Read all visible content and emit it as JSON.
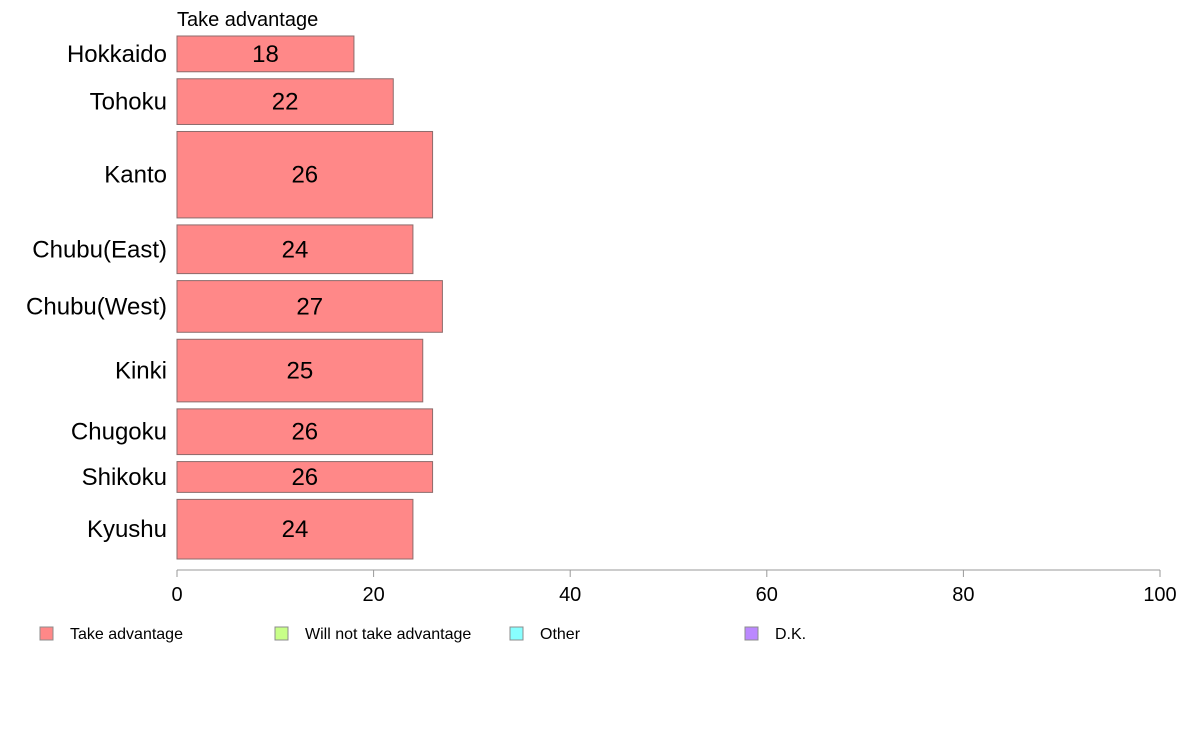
{
  "chart_data": {
    "type": "bar",
    "orientation": "horizontal",
    "stacked": true,
    "series_title": "Take advantage",
    "categories": [
      "Hokkaido",
      "Tohoku",
      "Kanto",
      "Chubu(East)",
      "Chubu(West)",
      "Kinki",
      "Chugoku",
      "Shikoku",
      "Kyushu"
    ],
    "series": [
      {
        "name": "Take advantage",
        "values": [
          18,
          22,
          26,
          24,
          27,
          25,
          26,
          26,
          24
        ],
        "labels": [
          "18",
          "22",
          "26",
          "24",
          "27",
          "25",
          "26",
          "26",
          "24"
        ],
        "color": "#ff8888"
      }
    ],
    "category_weights": [
      0.72,
      0.92,
      1.74,
      0.98,
      1.04,
      1.26,
      0.92,
      0.62,
      1.2
    ],
    "xlim": [
      0,
      100
    ],
    "xticks": [
      "0",
      "20",
      "40",
      "60",
      "80",
      "100"
    ],
    "xlabel": "",
    "ylabel": "",
    "grid": false,
    "legend_position": "bottom",
    "legend": [
      {
        "label": "Take advantage",
        "color": "#ff8888"
      },
      {
        "label": "Will not take advantage",
        "color": "#c8ff88"
      },
      {
        "label": "Other",
        "color": "#88ffff"
      },
      {
        "label": "D.K.",
        "color": "#bb88ff"
      }
    ]
  }
}
